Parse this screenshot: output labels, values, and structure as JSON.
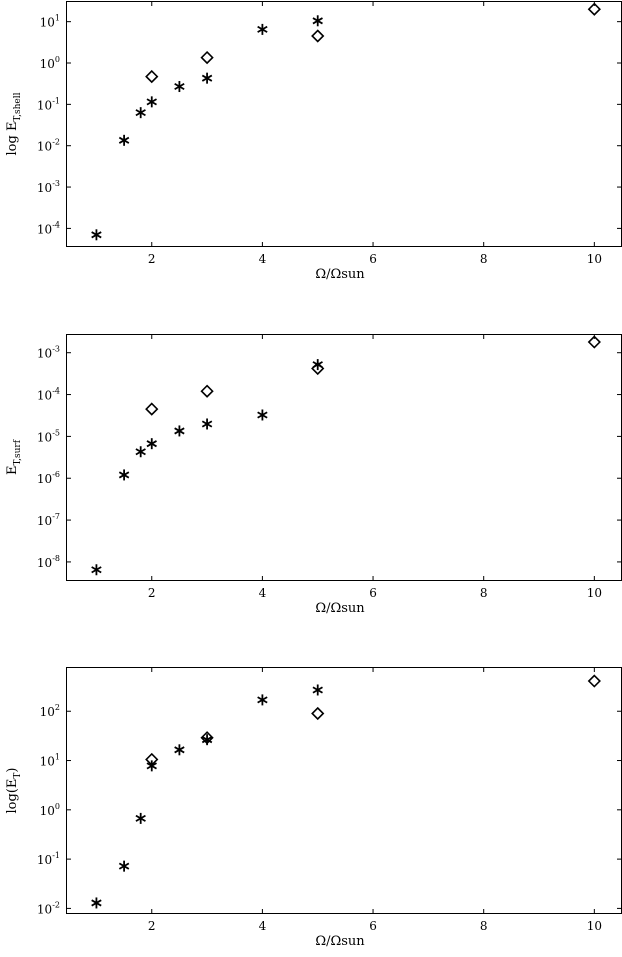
{
  "chart_data": [
    {
      "type": "scatter",
      "title": "",
      "xlabel": "Ω/Ωsun",
      "ylabel": {
        "main": "log E",
        "sub": "T,shell",
        "close": ""
      },
      "xlim": [
        0.45,
        10.5
      ],
      "ylim": [
        3.55e-05,
        31.6
      ],
      "yscale": "log",
      "xticks": [
        "2",
        "4",
        "6",
        "8",
        "10"
      ],
      "yticks": [
        {
          "base": "10",
          "exp": "1",
          "value": 10
        },
        {
          "base": "10",
          "exp": "0",
          "value": 1
        },
        {
          "base": "10",
          "exp": "-1",
          "value": 0.1
        },
        {
          "base": "10",
          "exp": "-2",
          "value": 0.01
        },
        {
          "base": "10",
          "exp": "-3",
          "value": 0.001
        },
        {
          "base": "10",
          "exp": "-4",
          "value": 0.0001
        }
      ],
      "series": [
        {
          "marker": "asterisk",
          "x": [
            1,
            1.5,
            1.8,
            2,
            2.5,
            3,
            4,
            5
          ],
          "y": [
            7e-05,
            0.0135,
            0.063,
            0.115,
            0.27,
            0.43,
            6.5,
            10.5
          ]
        },
        {
          "marker": "diamond",
          "x": [
            2,
            3,
            5,
            10
          ],
          "y": [
            0.47,
            1.35,
            4.5,
            20
          ]
        }
      ],
      "grid": false
    },
    {
      "type": "scatter",
      "title": "",
      "xlabel": "Ω/Ωsun",
      "ylabel": {
        "main": "E",
        "sub": "T,surf",
        "close": ""
      },
      "xlim": [
        0.45,
        10.5
      ],
      "ylim": [
        3.5e-09,
        0.0028
      ],
      "yscale": "log",
      "xticks": [
        "2",
        "4",
        "6",
        "8",
        "10"
      ],
      "yticks": [
        {
          "base": "10",
          "exp": "-3",
          "value": 0.001
        },
        {
          "base": "10",
          "exp": "-4",
          "value": 0.0001
        },
        {
          "base": "10",
          "exp": "-5",
          "value": 1e-05
        },
        {
          "base": "10",
          "exp": "-6",
          "value": 1e-06
        },
        {
          "base": "10",
          "exp": "-7",
          "value": 1e-07
        },
        {
          "base": "10",
          "exp": "-8",
          "value": 1e-08
        }
      ],
      "series": [
        {
          "marker": "asterisk",
          "x": [
            1,
            1.5,
            1.8,
            2,
            2.5,
            3,
            4,
            5
          ],
          "y": [
            6.5e-09,
            1.2e-06,
            4.3e-06,
            6.7e-06,
            1.35e-05,
            1.98e-05,
            3.25e-05,
            0.00052
          ]
        },
        {
          "marker": "diamond",
          "x": [
            2,
            3,
            5,
            10
          ],
          "y": [
            4.5e-05,
            0.00012,
            0.00042,
            0.0018
          ]
        }
      ],
      "grid": false
    },
    {
      "type": "scatter",
      "title": "",
      "xlabel": "Ω/Ωsun",
      "ylabel": {
        "main": "log(E",
        "sub": "T",
        "close": ")"
      },
      "xlim": [
        0.45,
        10.5
      ],
      "ylim": [
        0.0077,
        790
      ],
      "yscale": "log",
      "xticks": [
        "2",
        "4",
        "6",
        "8",
        "10"
      ],
      "yticks": [
        {
          "base": "10",
          "exp": "2",
          "value": 100
        },
        {
          "base": "10",
          "exp": "1",
          "value": 10
        },
        {
          "base": "10",
          "exp": "0",
          "value": 1
        },
        {
          "base": "10",
          "exp": "-1",
          "value": 0.1
        },
        {
          "base": "10",
          "exp": "-2",
          "value": 0.01
        }
      ],
      "series": [
        {
          "marker": "asterisk",
          "x": [
            1,
            1.5,
            1.8,
            2,
            2.5,
            3,
            4,
            5
          ],
          "y": [
            0.0129,
            0.072,
            0.67,
            7.8,
            16.5,
            26.5,
            170,
            270
          ]
        },
        {
          "marker": "diamond",
          "x": [
            2,
            3,
            5,
            10
          ],
          "y": [
            10.5,
            29,
            90,
            410
          ]
        }
      ],
      "grid": false
    }
  ]
}
